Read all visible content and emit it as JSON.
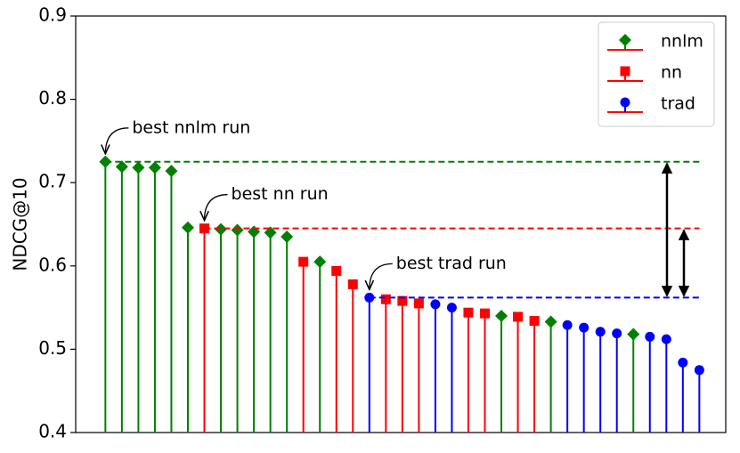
{
  "chart_data": {
    "type": "stem",
    "ylabel": "NDCG@10",
    "ylim": [
      0.4,
      0.9
    ],
    "yticks": [
      0.4,
      0.5,
      0.6,
      0.7,
      0.8,
      0.9
    ],
    "xlim": [
      -1.8,
      37.6
    ],
    "legend": "upper right",
    "series": [
      {
        "name": "nnlm",
        "color": "#008000",
        "marker": "diamond",
        "x": [
          0,
          1,
          2,
          3,
          4,
          5,
          7,
          8,
          9,
          10,
          11,
          13,
          24,
          27,
          32
        ],
        "values": [
          0.725,
          0.719,
          0.718,
          0.718,
          0.714,
          0.646,
          0.644,
          0.643,
          0.641,
          0.64,
          0.635,
          0.605,
          0.54,
          0.533,
          0.518
        ]
      },
      {
        "name": "nn",
        "color": "#ff0000",
        "marker": "square",
        "x": [
          6,
          12,
          14,
          15,
          17,
          18,
          19,
          22,
          23,
          25,
          26
        ],
        "values": [
          0.645,
          0.605,
          0.594,
          0.578,
          0.56,
          0.558,
          0.555,
          0.544,
          0.543,
          0.539,
          0.534
        ]
      },
      {
        "name": "trad",
        "color": "#0000ff",
        "marker": "circle",
        "x": [
          16,
          20,
          21,
          28,
          29,
          30,
          31,
          33,
          34,
          35,
          36
        ],
        "values": [
          0.562,
          0.554,
          0.55,
          0.529,
          0.526,
          0.521,
          0.519,
          0.515,
          0.512,
          0.484,
          0.475
        ]
      }
    ],
    "annotations": [
      "best nnlm run",
      "best nn run",
      "best trad run"
    ]
  }
}
